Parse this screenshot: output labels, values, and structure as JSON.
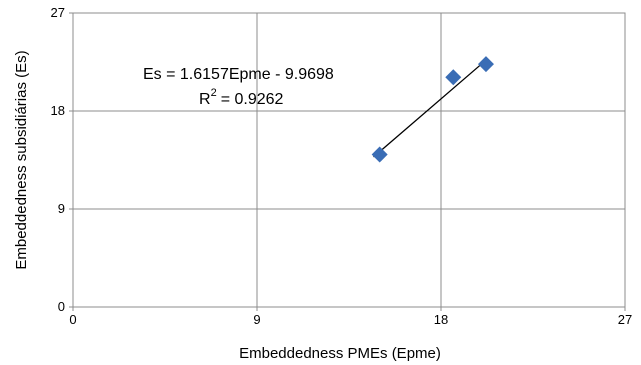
{
  "chart_data": {
    "type": "scatter",
    "title": "",
    "xlabel": "Embeddedness PMEs (Epme)",
    "ylabel": "Embeddedness subsidiárias (Es)",
    "xlim": [
      0,
      27
    ],
    "ylim": [
      0,
      27
    ],
    "x_ticks": [
      "0",
      "9",
      "18",
      "27"
    ],
    "y_ticks": [
      "0",
      "9",
      "18",
      "27"
    ],
    "grid": true,
    "legend": "none",
    "marker": "diamond",
    "marker_color": "#3a6db5",
    "series": [
      {
        "points": [
          {
            "x": 15.0,
            "y": 14.0
          },
          {
            "x": 18.6,
            "y": 21.1
          },
          {
            "x": 20.2,
            "y": 22.3
          }
        ]
      }
    ],
    "trendline": {
      "slope": 1.6157,
      "intercept": -9.9698,
      "x_range": [
        14.7,
        20.1
      ],
      "color": "#000000"
    },
    "annotations": {
      "equation": "Es = 1.6157Epme - 9.9698",
      "r2_label": "R",
      "r2_sup": "2",
      "r2_value": "= 0.9262"
    }
  }
}
